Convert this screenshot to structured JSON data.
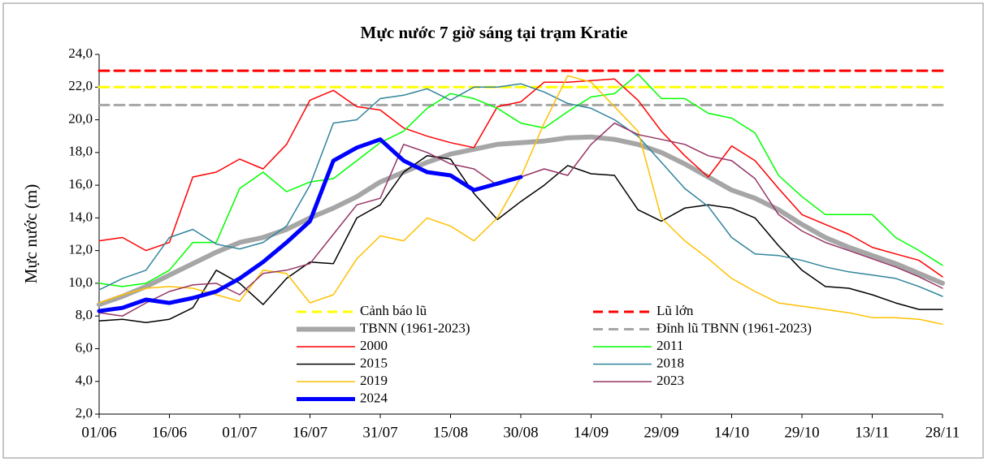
{
  "chart_data": {
    "type": "line",
    "title": "Mực nước 7 giờ sáng tại trạm Kratie",
    "y_label": "Mực nước (m)",
    "categories": [
      "01/06",
      null,
      null,
      "16/06",
      null,
      null,
      "01/07",
      null,
      null,
      "16/07",
      null,
      null,
      "31/07",
      null,
      null,
      "15/08",
      null,
      null,
      "30/08",
      null,
      null,
      "14/09",
      null,
      null,
      "29/09",
      null,
      null,
      "14/10",
      null,
      null,
      "29/10",
      null,
      null,
      "13/11",
      null,
      null,
      "28/11"
    ],
    "ylim": [
      2,
      24
    ],
    "yticks": [
      {
        "value": 2,
        "label": "2,0"
      },
      {
        "value": 4,
        "label": "4,0"
      },
      {
        "value": 6,
        "label": "6,0"
      },
      {
        "value": 8,
        "label": "8,0"
      },
      {
        "value": 10,
        "label": "10,0"
      },
      {
        "value": 12,
        "label": "12,0"
      },
      {
        "value": 14,
        "label": "14,0"
      },
      {
        "value": 16,
        "label": "16,0"
      },
      {
        "value": 18,
        "label": "18,0"
      },
      {
        "value": 20,
        "label": "20,0"
      },
      {
        "value": 22,
        "label": "22,0"
      },
      {
        "value": 24,
        "label": "24,0"
      }
    ],
    "series": [
      {
        "name": "Cảnh báo lũ",
        "color": "#ffff00",
        "dash": true,
        "width": 3,
        "level": 22
      },
      {
        "name": "Lũ lớn",
        "color": "#ff0000",
        "dash": true,
        "width": 3,
        "level": 23
      },
      {
        "name": "TBNN (1961-2023)",
        "color": "#a6a6a6",
        "width": 6,
        "values": [
          8.7,
          9.2,
          9.8,
          10.5,
          11.2,
          11.9,
          12.5,
          12.8,
          13.3,
          14.0,
          14.6,
          15.3,
          16.2,
          16.8,
          17.4,
          17.9,
          18.2,
          18.5,
          18.6,
          18.7,
          18.9,
          18.95,
          18.8,
          18.5,
          18.0,
          17.3,
          16.5,
          15.7,
          15.2,
          14.5,
          13.6,
          12.8,
          12.2,
          11.7,
          11.2,
          10.6,
          10.0
        ]
      },
      {
        "name": "Đỉnh lũ TBNN (1961-2023)",
        "color": "#a6a6a6",
        "dash": true,
        "width": 3,
        "level": 20.9
      },
      {
        "name": "2000",
        "color": "#ff0000",
        "width": 1.5,
        "values": [
          12.6,
          12.8,
          12.0,
          12.5,
          16.5,
          16.8,
          17.6,
          17.0,
          18.5,
          21.2,
          21.8,
          20.8,
          20.6,
          19.5,
          19.0,
          18.6,
          18.3,
          20.8,
          21.1,
          22.3,
          22.3,
          22.4,
          22.5,
          21.2,
          19.3,
          17.8,
          16.5,
          18.4,
          17.5,
          15.8,
          14.2,
          13.6,
          13.0,
          12.2,
          11.8,
          11.4,
          10.4
        ]
      },
      {
        "name": "2011",
        "color": "#00ff00",
        "width": 1.5,
        "values": [
          10.0,
          9.8,
          10.0,
          10.8,
          12.5,
          12.5,
          15.8,
          16.8,
          15.6,
          16.2,
          16.4,
          17.5,
          18.6,
          19.3,
          20.7,
          21.6,
          21.3,
          20.7,
          19.8,
          19.5,
          20.5,
          21.4,
          21.6,
          22.8,
          21.3,
          21.3,
          20.4,
          20.1,
          19.2,
          16.6,
          15.3,
          14.2,
          14.2,
          14.2,
          12.8,
          12.0,
          11.1
        ]
      },
      {
        "name": "2015",
        "color": "#000000",
        "width": 1.5,
        "values": [
          7.7,
          7.8,
          7.6,
          7.8,
          8.5,
          10.8,
          10.0,
          8.7,
          10.3,
          11.3,
          11.2,
          14.0,
          14.8,
          16.8,
          17.8,
          17.6,
          15.5,
          13.9,
          15.0,
          16.0,
          17.2,
          16.7,
          16.6,
          14.5,
          13.8,
          14.6,
          14.8,
          14.6,
          14.0,
          12.3,
          10.8,
          9.8,
          9.7,
          9.3,
          8.8,
          8.4,
          8.4
        ]
      },
      {
        "name": "2018",
        "color": "#31849b",
        "width": 1.5,
        "values": [
          9.6,
          10.3,
          10.8,
          12.8,
          13.3,
          12.4,
          12.1,
          12.5,
          13.5,
          16.0,
          19.8,
          20.0,
          21.3,
          21.5,
          21.9,
          21.2,
          22.0,
          22.0,
          22.2,
          21.7,
          21.0,
          20.7,
          20.0,
          19.0,
          17.4,
          15.8,
          14.7,
          12.8,
          11.8,
          11.7,
          11.4,
          11.0,
          10.7,
          10.5,
          10.3,
          9.8,
          9.2
        ]
      },
      {
        "name": "2019",
        "color": "#ffc000",
        "width": 1.5,
        "values": [
          8.8,
          9.3,
          9.7,
          9.8,
          9.7,
          9.3,
          8.9,
          10.8,
          10.6,
          8.8,
          9.3,
          11.5,
          12.9,
          12.6,
          14.0,
          13.5,
          12.6,
          14.0,
          16.5,
          19.8,
          22.7,
          22.3,
          20.8,
          19.3,
          14.0,
          12.6,
          11.5,
          10.3,
          9.5,
          8.8,
          8.6,
          8.4,
          8.2,
          7.9,
          7.9,
          7.8,
          7.5
        ]
      },
      {
        "name": "2023",
        "color": "#953565",
        "width": 1.5,
        "values": [
          8.2,
          8.0,
          8.8,
          9.5,
          9.9,
          10.0,
          9.3,
          10.6,
          10.8,
          11.2,
          13.0,
          14.8,
          15.2,
          18.5,
          18.0,
          17.3,
          17.0,
          16.0,
          16.5,
          17.0,
          16.6,
          18.5,
          19.8,
          19.1,
          18.8,
          18.5,
          17.8,
          17.5,
          16.4,
          14.2,
          13.2,
          12.5,
          12.0,
          11.5,
          11.0,
          10.4,
          9.7
        ]
      },
      {
        "name": "2024",
        "color": "#0000ff",
        "width": 5,
        "values": [
          8.3,
          8.5,
          9.0,
          8.8,
          9.1,
          9.5,
          10.3,
          11.3,
          12.5,
          13.8,
          17.5,
          18.3,
          18.8,
          17.5,
          16.8,
          16.6,
          15.7,
          16.1,
          16.5,
          null,
          null,
          null,
          null,
          null,
          null,
          null,
          null,
          null,
          null,
          null,
          null,
          null,
          null,
          null,
          null,
          null,
          null
        ]
      }
    ]
  }
}
